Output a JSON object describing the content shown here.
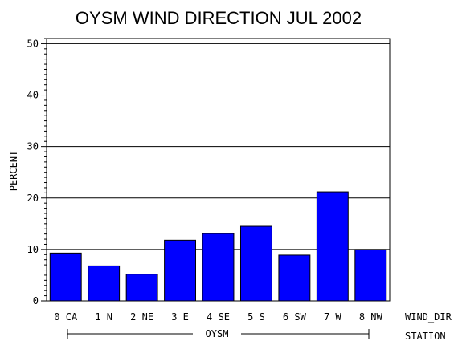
{
  "chart_data": {
    "type": "bar",
    "title": "OYSM WIND DIRECTION JUL 2002",
    "ylabel": "PERCENT",
    "xlabel": "WIND_DIR",
    "group_axis_label": "STATION",
    "group_label": "OYSM",
    "categories": [
      "0 CA",
      "1 N",
      "2 NE",
      "3 E",
      "4 SE",
      "5 S",
      "6 SW",
      "7 W",
      "8 NW"
    ],
    "values": [
      9.3,
      6.8,
      5.2,
      11.8,
      13.1,
      14.5,
      8.9,
      21.2,
      10.0
    ],
    "ylim": [
      0,
      51
    ],
    "yticks": [
      0,
      10,
      20,
      30,
      40,
      50
    ],
    "grid": true,
    "bar_color": "#0000ff"
  }
}
